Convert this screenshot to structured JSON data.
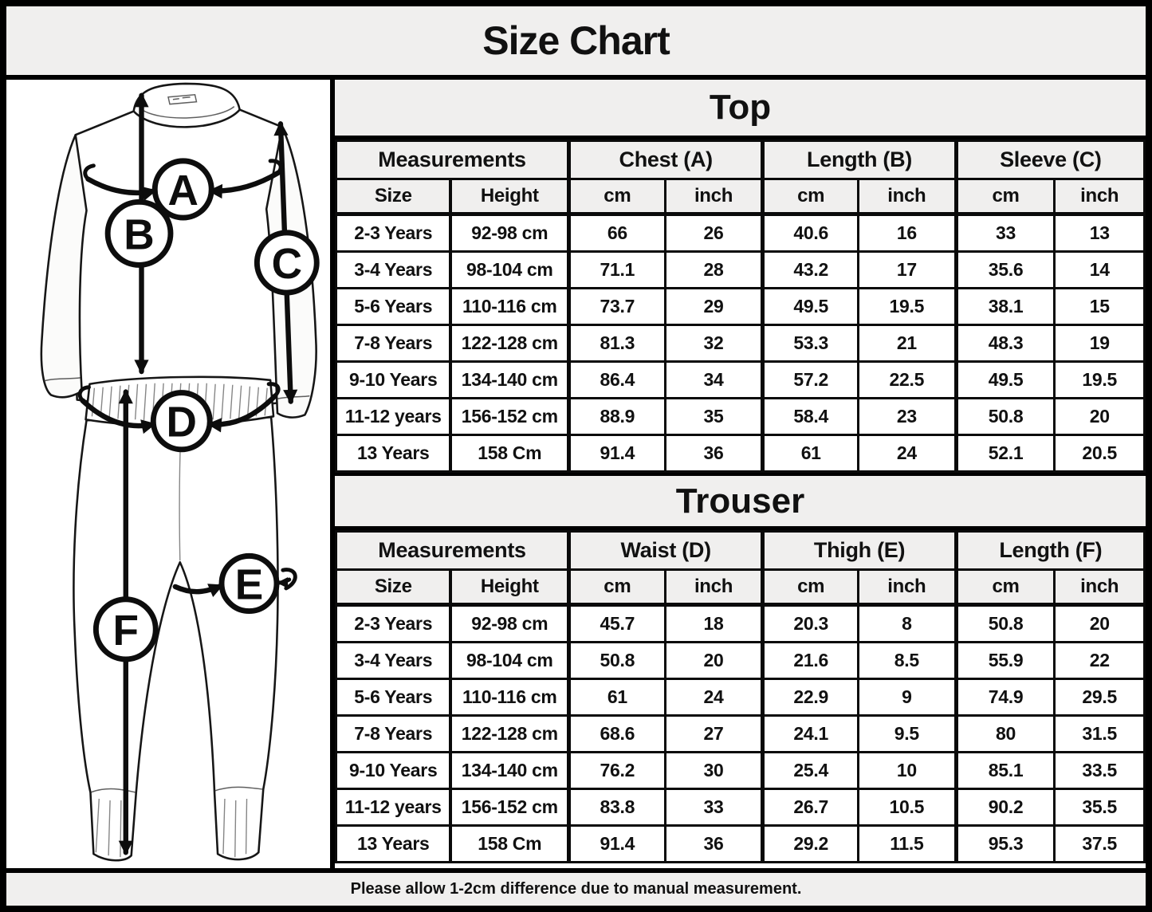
{
  "title": "Size Chart",
  "footer_note": "Please allow 1-2cm difference due to manual measurement.",
  "colors": {
    "border": "#000000",
    "header_bg": "#f0efee",
    "row_bg": "#ffffff",
    "text": "#111111"
  },
  "illustration": {
    "description": "line drawing of kids pyjama set (long-sleeve top and trousers) with circled measurement letters",
    "labels": {
      "a": "A",
      "b": "B",
      "c": "C",
      "d": "D",
      "e": "E",
      "f": "F"
    }
  },
  "tables": [
    {
      "title": "Top",
      "group_headers": [
        "Measurements",
        "Chest (A)",
        "Length (B)",
        "Sleeve (C)"
      ],
      "sub_headers": [
        "Size",
        "Height",
        "cm",
        "inch",
        "cm",
        "inch",
        "cm",
        "inch"
      ],
      "rows": [
        [
          "2-3 Years",
          "92-98 cm",
          "66",
          "26",
          "40.6",
          "16",
          "33",
          "13"
        ],
        [
          "3-4 Years",
          "98-104 cm",
          "71.1",
          "28",
          "43.2",
          "17",
          "35.6",
          "14"
        ],
        [
          "5-6 Years",
          "110-116 cm",
          "73.7",
          "29",
          "49.5",
          "19.5",
          "38.1",
          "15"
        ],
        [
          "7-8 Years",
          "122-128 cm",
          "81.3",
          "32",
          "53.3",
          "21",
          "48.3",
          "19"
        ],
        [
          "9-10 Years",
          "134-140 cm",
          "86.4",
          "34",
          "57.2",
          "22.5",
          "49.5",
          "19.5"
        ],
        [
          "11-12 years",
          "156-152 cm",
          "88.9",
          "35",
          "58.4",
          "23",
          "50.8",
          "20"
        ],
        [
          "13 Years",
          "158 Cm",
          "91.4",
          "36",
          "61",
          "24",
          "52.1",
          "20.5"
        ]
      ]
    },
    {
      "title": "Trouser",
      "group_headers": [
        "Measurements",
        "Waist (D)",
        "Thigh (E)",
        "Length (F)"
      ],
      "sub_headers": [
        "Size",
        "Height",
        "cm",
        "inch",
        "cm",
        "inch",
        "cm",
        "inch"
      ],
      "rows": [
        [
          "2-3 Years",
          "92-98 cm",
          "45.7",
          "18",
          "20.3",
          "8",
          "50.8",
          "20"
        ],
        [
          "3-4 Years",
          "98-104 cm",
          "50.8",
          "20",
          "21.6",
          "8.5",
          "55.9",
          "22"
        ],
        [
          "5-6 Years",
          "110-116 cm",
          "61",
          "24",
          "22.9",
          "9",
          "74.9",
          "29.5"
        ],
        [
          "7-8 Years",
          "122-128 cm",
          "68.6",
          "27",
          "24.1",
          "9.5",
          "80",
          "31.5"
        ],
        [
          "9-10 Years",
          "134-140 cm",
          "76.2",
          "30",
          "25.4",
          "10",
          "85.1",
          "33.5"
        ],
        [
          "11-12 years",
          "156-152 cm",
          "83.8",
          "33",
          "26.7",
          "10.5",
          "90.2",
          "35.5"
        ],
        [
          "13 Years",
          "158 Cm",
          "91.4",
          "36",
          "29.2",
          "11.5",
          "95.3",
          "37.5"
        ]
      ]
    }
  ]
}
